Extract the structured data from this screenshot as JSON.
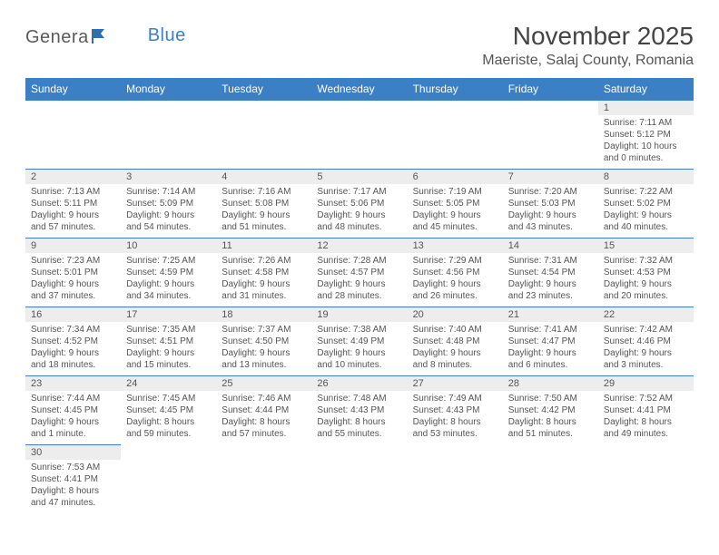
{
  "logo": {
    "main": "Genera",
    "accent": "Blue"
  },
  "title": "November 2025",
  "location": "Maeriste, Salaj County, Romania",
  "colors": {
    "header_bg": "#3b7fc4",
    "header_fg": "#ffffff",
    "daynum_bg": "#ededed",
    "text": "#555555",
    "title": "#444444",
    "rule": "#3b7fc4"
  },
  "weekdays": [
    "Sunday",
    "Monday",
    "Tuesday",
    "Wednesday",
    "Thursday",
    "Friday",
    "Saturday"
  ],
  "weeks": [
    [
      {
        "n": "",
        "lines": [
          "",
          "",
          "",
          ""
        ]
      },
      {
        "n": "",
        "lines": [
          "",
          "",
          "",
          ""
        ]
      },
      {
        "n": "",
        "lines": [
          "",
          "",
          "",
          ""
        ]
      },
      {
        "n": "",
        "lines": [
          "",
          "",
          "",
          ""
        ]
      },
      {
        "n": "",
        "lines": [
          "",
          "",
          "",
          ""
        ]
      },
      {
        "n": "",
        "lines": [
          "",
          "",
          "",
          ""
        ]
      },
      {
        "n": "1",
        "lines": [
          "Sunrise: 7:11 AM",
          "Sunset: 5:12 PM",
          "Daylight: 10 hours",
          "and 0 minutes."
        ]
      }
    ],
    [
      {
        "n": "2",
        "lines": [
          "Sunrise: 7:13 AM",
          "Sunset: 5:11 PM",
          "Daylight: 9 hours",
          "and 57 minutes."
        ]
      },
      {
        "n": "3",
        "lines": [
          "Sunrise: 7:14 AM",
          "Sunset: 5:09 PM",
          "Daylight: 9 hours",
          "and 54 minutes."
        ]
      },
      {
        "n": "4",
        "lines": [
          "Sunrise: 7:16 AM",
          "Sunset: 5:08 PM",
          "Daylight: 9 hours",
          "and 51 minutes."
        ]
      },
      {
        "n": "5",
        "lines": [
          "Sunrise: 7:17 AM",
          "Sunset: 5:06 PM",
          "Daylight: 9 hours",
          "and 48 minutes."
        ]
      },
      {
        "n": "6",
        "lines": [
          "Sunrise: 7:19 AM",
          "Sunset: 5:05 PM",
          "Daylight: 9 hours",
          "and 45 minutes."
        ]
      },
      {
        "n": "7",
        "lines": [
          "Sunrise: 7:20 AM",
          "Sunset: 5:03 PM",
          "Daylight: 9 hours",
          "and 43 minutes."
        ]
      },
      {
        "n": "8",
        "lines": [
          "Sunrise: 7:22 AM",
          "Sunset: 5:02 PM",
          "Daylight: 9 hours",
          "and 40 minutes."
        ]
      }
    ],
    [
      {
        "n": "9",
        "lines": [
          "Sunrise: 7:23 AM",
          "Sunset: 5:01 PM",
          "Daylight: 9 hours",
          "and 37 minutes."
        ]
      },
      {
        "n": "10",
        "lines": [
          "Sunrise: 7:25 AM",
          "Sunset: 4:59 PM",
          "Daylight: 9 hours",
          "and 34 minutes."
        ]
      },
      {
        "n": "11",
        "lines": [
          "Sunrise: 7:26 AM",
          "Sunset: 4:58 PM",
          "Daylight: 9 hours",
          "and 31 minutes."
        ]
      },
      {
        "n": "12",
        "lines": [
          "Sunrise: 7:28 AM",
          "Sunset: 4:57 PM",
          "Daylight: 9 hours",
          "and 28 minutes."
        ]
      },
      {
        "n": "13",
        "lines": [
          "Sunrise: 7:29 AM",
          "Sunset: 4:56 PM",
          "Daylight: 9 hours",
          "and 26 minutes."
        ]
      },
      {
        "n": "14",
        "lines": [
          "Sunrise: 7:31 AM",
          "Sunset: 4:54 PM",
          "Daylight: 9 hours",
          "and 23 minutes."
        ]
      },
      {
        "n": "15",
        "lines": [
          "Sunrise: 7:32 AM",
          "Sunset: 4:53 PM",
          "Daylight: 9 hours",
          "and 20 minutes."
        ]
      }
    ],
    [
      {
        "n": "16",
        "lines": [
          "Sunrise: 7:34 AM",
          "Sunset: 4:52 PM",
          "Daylight: 9 hours",
          "and 18 minutes."
        ]
      },
      {
        "n": "17",
        "lines": [
          "Sunrise: 7:35 AM",
          "Sunset: 4:51 PM",
          "Daylight: 9 hours",
          "and 15 minutes."
        ]
      },
      {
        "n": "18",
        "lines": [
          "Sunrise: 7:37 AM",
          "Sunset: 4:50 PM",
          "Daylight: 9 hours",
          "and 13 minutes."
        ]
      },
      {
        "n": "19",
        "lines": [
          "Sunrise: 7:38 AM",
          "Sunset: 4:49 PM",
          "Daylight: 9 hours",
          "and 10 minutes."
        ]
      },
      {
        "n": "20",
        "lines": [
          "Sunrise: 7:40 AM",
          "Sunset: 4:48 PM",
          "Daylight: 9 hours",
          "and 8 minutes."
        ]
      },
      {
        "n": "21",
        "lines": [
          "Sunrise: 7:41 AM",
          "Sunset: 4:47 PM",
          "Daylight: 9 hours",
          "and 6 minutes."
        ]
      },
      {
        "n": "22",
        "lines": [
          "Sunrise: 7:42 AM",
          "Sunset: 4:46 PM",
          "Daylight: 9 hours",
          "and 3 minutes."
        ]
      }
    ],
    [
      {
        "n": "23",
        "lines": [
          "Sunrise: 7:44 AM",
          "Sunset: 4:45 PM",
          "Daylight: 9 hours",
          "and 1 minute."
        ]
      },
      {
        "n": "24",
        "lines": [
          "Sunrise: 7:45 AM",
          "Sunset: 4:45 PM",
          "Daylight: 8 hours",
          "and 59 minutes."
        ]
      },
      {
        "n": "25",
        "lines": [
          "Sunrise: 7:46 AM",
          "Sunset: 4:44 PM",
          "Daylight: 8 hours",
          "and 57 minutes."
        ]
      },
      {
        "n": "26",
        "lines": [
          "Sunrise: 7:48 AM",
          "Sunset: 4:43 PM",
          "Daylight: 8 hours",
          "and 55 minutes."
        ]
      },
      {
        "n": "27",
        "lines": [
          "Sunrise: 7:49 AM",
          "Sunset: 4:43 PM",
          "Daylight: 8 hours",
          "and 53 minutes."
        ]
      },
      {
        "n": "28",
        "lines": [
          "Sunrise: 7:50 AM",
          "Sunset: 4:42 PM",
          "Daylight: 8 hours",
          "and 51 minutes."
        ]
      },
      {
        "n": "29",
        "lines": [
          "Sunrise: 7:52 AM",
          "Sunset: 4:41 PM",
          "Daylight: 8 hours",
          "and 49 minutes."
        ]
      }
    ],
    [
      {
        "n": "30",
        "lines": [
          "Sunrise: 7:53 AM",
          "Sunset: 4:41 PM",
          "Daylight: 8 hours",
          "and 47 minutes."
        ]
      },
      {
        "n": "",
        "lines": [
          "",
          "",
          "",
          ""
        ]
      },
      {
        "n": "",
        "lines": [
          "",
          "",
          "",
          ""
        ]
      },
      {
        "n": "",
        "lines": [
          "",
          "",
          "",
          ""
        ]
      },
      {
        "n": "",
        "lines": [
          "",
          "",
          "",
          ""
        ]
      },
      {
        "n": "",
        "lines": [
          "",
          "",
          "",
          ""
        ]
      },
      {
        "n": "",
        "lines": [
          "",
          "",
          "",
          ""
        ]
      }
    ]
  ]
}
